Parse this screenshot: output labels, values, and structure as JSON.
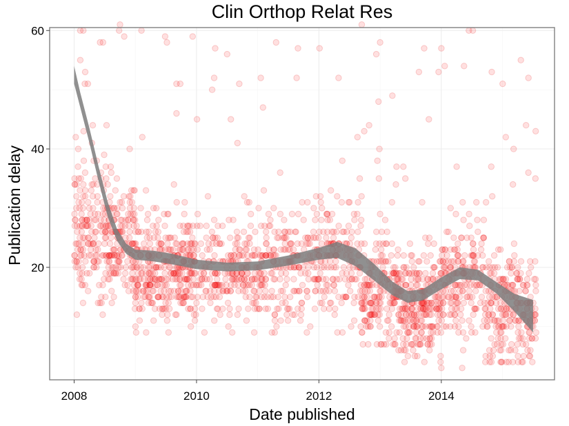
{
  "chart_data": {
    "type": "scatter",
    "title": "Clin Orthop Relat Res",
    "xlabel": "Date published",
    "ylabel": "Publication delay",
    "xlim": [
      2007.6,
      2015.85
    ],
    "ylim": [
      1,
      60.5
    ],
    "x_ticks": [
      2008,
      2010,
      2012,
      2014
    ],
    "x_tick_labels": [
      "2008",
      "2010",
      "2012",
      "2014"
    ],
    "y_ticks": [
      20,
      40,
      60
    ],
    "y_tick_labels": [
      "20",
      "40",
      "60"
    ],
    "grid": true,
    "point_color": "#ff0000",
    "point_alpha": 0.12,
    "smooth_band_color": "#7d7d7d",
    "smooth_band": [
      {
        "x": 2008.0,
        "lo": 51.0,
        "hi": 54.0
      },
      {
        "x": 2008.1,
        "lo": 47.0,
        "hi": 49.5
      },
      {
        "x": 2008.25,
        "lo": 41.0,
        "hi": 43.5
      },
      {
        "x": 2008.4,
        "lo": 34.5,
        "hi": 37.0
      },
      {
        "x": 2008.55,
        "lo": 28.5,
        "hi": 31.0
      },
      {
        "x": 2008.7,
        "lo": 24.5,
        "hi": 26.5
      },
      {
        "x": 2008.85,
        "lo": 22.3,
        "hi": 24.0
      },
      {
        "x": 2009.0,
        "lo": 21.3,
        "hi": 23.0
      },
      {
        "x": 2009.3,
        "lo": 21.0,
        "hi": 22.8
      },
      {
        "x": 2009.6,
        "lo": 20.5,
        "hi": 22.3
      },
      {
        "x": 2010.0,
        "lo": 19.7,
        "hi": 21.3
      },
      {
        "x": 2010.5,
        "lo": 19.3,
        "hi": 20.8
      },
      {
        "x": 2011.0,
        "lo": 19.5,
        "hi": 21.0
      },
      {
        "x": 2011.5,
        "lo": 20.3,
        "hi": 22.0
      },
      {
        "x": 2012.0,
        "lo": 21.3,
        "hi": 23.3
      },
      {
        "x": 2012.3,
        "lo": 21.6,
        "hi": 24.3
      },
      {
        "x": 2012.6,
        "lo": 20.2,
        "hi": 23.2
      },
      {
        "x": 2012.9,
        "lo": 17.8,
        "hi": 20.6
      },
      {
        "x": 2013.2,
        "lo": 15.3,
        "hi": 17.6
      },
      {
        "x": 2013.45,
        "lo": 14.0,
        "hi": 16.0
      },
      {
        "x": 2013.7,
        "lo": 14.4,
        "hi": 16.3
      },
      {
        "x": 2014.0,
        "lo": 16.3,
        "hi": 18.3
      },
      {
        "x": 2014.3,
        "lo": 18.0,
        "hi": 20.0
      },
      {
        "x": 2014.6,
        "lo": 17.8,
        "hi": 19.6
      },
      {
        "x": 2014.9,
        "lo": 15.6,
        "hi": 17.5
      },
      {
        "x": 2015.2,
        "lo": 12.5,
        "hi": 15.5
      },
      {
        "x": 2015.5,
        "lo": 9.0,
        "hi": 14.5
      }
    ],
    "scatter_segments": [
      {
        "x0": 2008.0,
        "x1": 2008.5,
        "n": 160,
        "mean": 26,
        "sd": 9,
        "ymin": 12,
        "ymax": 61
      },
      {
        "x0": 2008.5,
        "x1": 2009.0,
        "n": 180,
        "mean": 25,
        "sd": 7,
        "ymin": 9,
        "ymax": 61
      },
      {
        "x0": 2009.0,
        "x1": 2010.0,
        "n": 360,
        "mean": 20,
        "sd": 6,
        "ymin": 9,
        "ymax": 61
      },
      {
        "x0": 2010.0,
        "x1": 2011.0,
        "n": 230,
        "mean": 19,
        "sd": 6,
        "ymin": 9,
        "ymax": 58
      },
      {
        "x0": 2011.0,
        "x1": 2012.0,
        "n": 230,
        "mean": 20,
        "sd": 7,
        "ymin": 9,
        "ymax": 58
      },
      {
        "x0": 2012.0,
        "x1": 2012.7,
        "n": 170,
        "mean": 21,
        "sd": 7,
        "ymin": 9,
        "ymax": 61
      },
      {
        "x0": 2012.7,
        "x1": 2013.3,
        "n": 200,
        "mean": 16,
        "sd": 7,
        "ymin": 7,
        "ymax": 61
      },
      {
        "x0": 2013.3,
        "x1": 2014.0,
        "n": 260,
        "mean": 14,
        "sd": 6,
        "ymin": 3,
        "ymax": 57
      },
      {
        "x0": 2014.0,
        "x1": 2014.7,
        "n": 200,
        "mean": 19,
        "sd": 7,
        "ymin": 3,
        "ymax": 61
      },
      {
        "x0": 2014.7,
        "x1": 2015.55,
        "n": 260,
        "mean": 13,
        "sd": 7,
        "ymin": 4,
        "ymax": 55
      }
    ],
    "notable_points": [
      {
        "x": 2008.1,
        "y": 60
      },
      {
        "x": 2008.15,
        "y": 60
      },
      {
        "x": 2008.1,
        "y": 55
      },
      {
        "x": 2008.75,
        "y": 61
      },
      {
        "x": 2009.1,
        "y": 60
      },
      {
        "x": 2010.5,
        "y": 56
      },
      {
        "x": 2011.05,
        "y": 52
      },
      {
        "x": 2011.3,
        "y": 58
      },
      {
        "x": 2012.7,
        "y": 61
      },
      {
        "x": 2013.0,
        "y": 58
      },
      {
        "x": 2013.2,
        "y": 49
      },
      {
        "x": 2014.0,
        "y": 57
      },
      {
        "x": 2014.45,
        "y": 60
      },
      {
        "x": 2015.3,
        "y": 55
      },
      {
        "x": 2014.0,
        "y": 3
      },
      {
        "x": 2013.4,
        "y": 4
      },
      {
        "x": 2015.1,
        "y": 4
      }
    ]
  }
}
